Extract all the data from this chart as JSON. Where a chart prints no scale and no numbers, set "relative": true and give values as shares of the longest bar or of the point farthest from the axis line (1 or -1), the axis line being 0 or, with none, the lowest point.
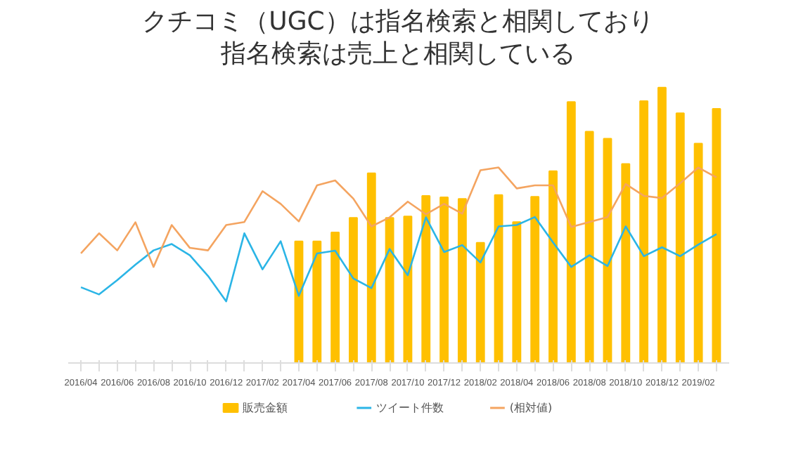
{
  "chart_data": {
    "type": "bar",
    "title": "クチコミ（UGC）は指名検索と相関しており指名検索は売上と相関している",
    "relative": true,
    "legend": "bottom",
    "categories": [
      "2016/04",
      null,
      "2016/06",
      null,
      "2016/08",
      null,
      "2016/10",
      null,
      "2016/12",
      null,
      "2017/02",
      null,
      "2017/04",
      null,
      "2017/06",
      null,
      "2017/08",
      null,
      "2017/10",
      null,
      "2017/12",
      null,
      "2018/02",
      null,
      "2018/04",
      null,
      "2018/06",
      null,
      "2018/08",
      null,
      "2018/10",
      null,
      "2018/12",
      null,
      "2019/02",
      null
    ],
    "series": [
      {
        "name": "販売金額",
        "color": "#ffc000",
        "values": [
          null,
          null,
          null,
          null,
          null,
          null,
          null,
          null,
          null,
          null,
          null,
          null,
          0.442,
          0.442,
          0.474,
          0.527,
          0.689,
          0.527,
          0.532,
          0.607,
          0.602,
          0.596,
          0.437,
          0.61,
          0.512,
          0.604,
          0.697,
          0.948,
          0.84,
          0.815,
          0.723,
          0.951,
          1.0,
          0.907,
          0.797,
          0.923
        ]
      },
      {
        "name": "ツイート件数",
        "type": "line",
        "color": "#2bb5e6",
        "values": [
          0.275,
          0.249,
          0.301,
          0.357,
          0.409,
          0.432,
          0.391,
          0.316,
          0.224,
          0.471,
          0.34,
          0.442,
          0.244,
          0.398,
          0.408,
          0.307,
          0.272,
          0.414,
          0.319,
          0.529,
          0.403,
          0.428,
          0.365,
          0.496,
          0.501,
          0.53,
          0.438,
          0.349,
          0.391,
          0.352,
          0.496,
          0.388,
          0.42,
          0.388,
          0.43,
          0.468
        ]
      },
      {
        "name": "(相対値)",
        "type": "line",
        "color": "#f4a460",
        "values": [
          0.398,
          0.471,
          0.409,
          0.511,
          0.349,
          0.501,
          0.418,
          0.409,
          0.501,
          0.512,
          0.624,
          0.578,
          0.514,
          0.645,
          0.663,
          0.597,
          0.496,
          0.529,
          0.586,
          0.54,
          0.578,
          0.542,
          0.7,
          0.71,
          0.634,
          0.645,
          0.645,
          0.494,
          0.512,
          0.53,
          0.65,
          0.607,
          0.599,
          0.653,
          0.71,
          0.674
        ]
      }
    ]
  }
}
